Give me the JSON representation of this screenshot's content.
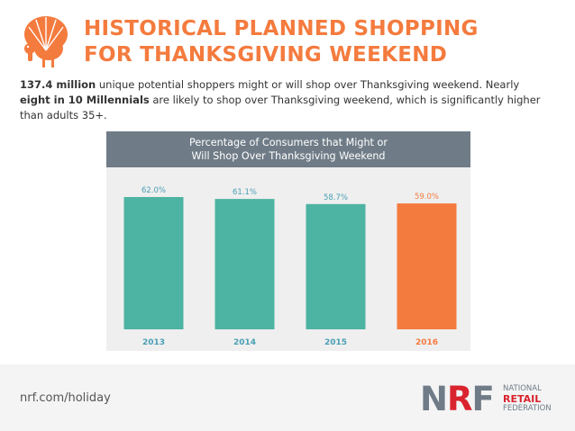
{
  "headline": {
    "line1": "HISTORICAL PLANNED SHOPPING",
    "line2": "FOR THANKSGIVING WEEKEND"
  },
  "summary": {
    "bold1": "137.4 million",
    "text1": " unique potential shoppers might or will shop over Thanksgiving weekend. Nearly ",
    "bold2": "eight in 10 Millennials",
    "text2": " are likely to shop over Thanksgiving weekend, which is significantly higher than adults 35+."
  },
  "colors": {
    "accent": "#f47b3e",
    "teal": "#4db3a2",
    "header_bg": "#6f7c87",
    "logo_red": "#d9232e"
  },
  "chart_data": {
    "type": "bar",
    "title": "Percentage of Consumers that Might or Will Shop Over Thanksgiving Weekend",
    "title_lines": [
      "Percentage of Consumers that Might or",
      "Will Shop Over Thanksgiving Weekend"
    ],
    "categories": [
      "2013",
      "2014",
      "2015",
      "2016"
    ],
    "values": [
      62.0,
      61.1,
      58.7,
      59.0
    ],
    "value_labels": [
      "62.0%",
      "61.1%",
      "58.7%",
      "59.0%"
    ],
    "bar_colors": [
      "#4db3a2",
      "#4db3a2",
      "#4db3a2",
      "#f47b3e"
    ],
    "label_colors": [
      "#4a9fb5",
      "#4a9fb5",
      "#4a9fb5",
      "#f47b3e"
    ],
    "ylim": [
      0,
      70
    ],
    "grid": false,
    "legend": "none"
  },
  "footer": {
    "url": "nrf.com/holiday",
    "logo_mark": [
      "N",
      "R",
      "F"
    ],
    "logo_lines": [
      "NATIONAL",
      "RETAIL",
      "FEDERATION"
    ]
  },
  "icons": {
    "turkey": "turkey-icon"
  }
}
